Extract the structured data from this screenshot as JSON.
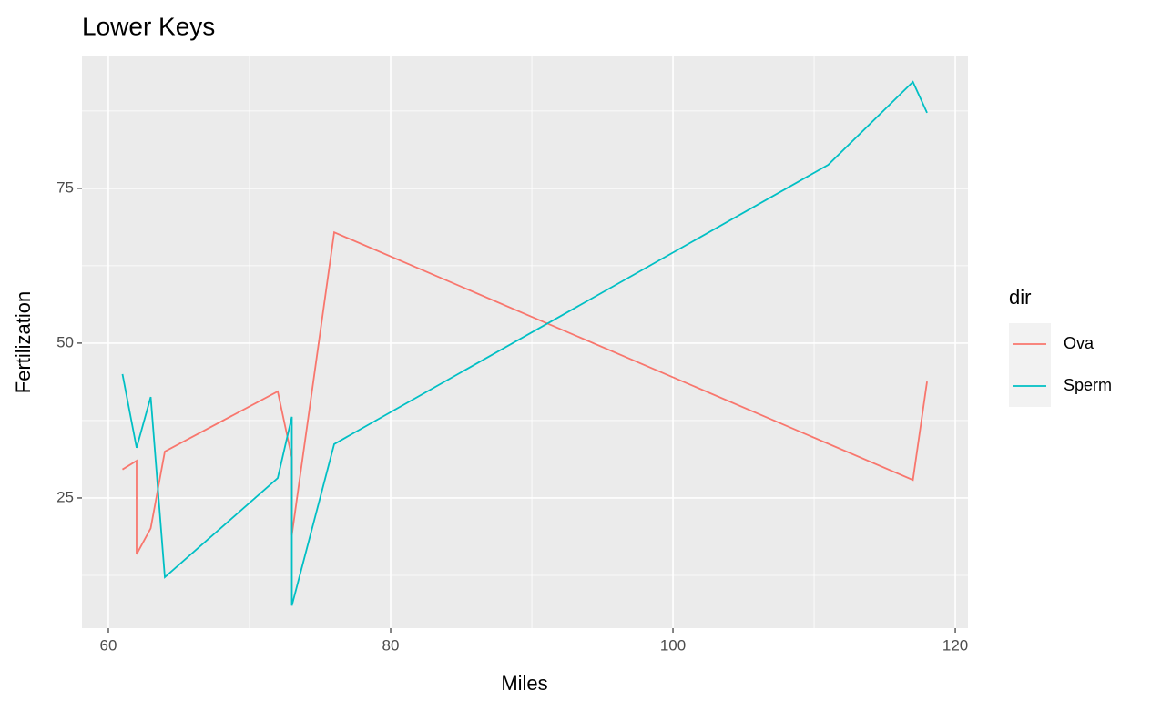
{
  "chart_data": {
    "type": "line",
    "title": "Lower Keys",
    "x_label": "Miles",
    "y_label": "Fertilization",
    "legend_title": "dir",
    "legend": "right",
    "series": [
      {
        "name": "Ova",
        "color": "#F8766D",
        "x": [
          61,
          62,
          62,
          63,
          64,
          72,
          73,
          73,
          76,
          117,
          118
        ],
        "values": [
          29.6,
          31.0,
          15.9,
          20.1,
          32.5,
          42.2,
          31.5,
          19.0,
          67.9,
          27.9,
          43.8
        ]
      },
      {
        "name": "Sperm",
        "color": "#00BFC4",
        "x": [
          61,
          62,
          63,
          64,
          72,
          73,
          73,
          76,
          111,
          117,
          118
        ],
        "values": [
          45.0,
          33.1,
          41.3,
          12.2,
          28.2,
          38.1,
          7.6,
          33.7,
          78.8,
          92.2,
          87.2
        ]
      }
    ],
    "xlim": [
      58.13,
      120.9
    ],
    "ylim": [
      3.97,
      96.3
    ],
    "xticks": [
      60,
      80,
      100,
      120
    ],
    "yticks": [
      25,
      50,
      75
    ],
    "xminor": [
      70,
      90,
      110
    ],
    "yminor": [
      12.5,
      37.5,
      62.5,
      87.5
    ],
    "grid": true
  }
}
